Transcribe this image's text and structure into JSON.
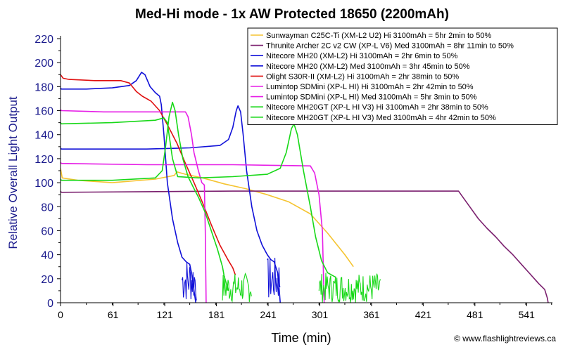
{
  "chart_data": {
    "type": "line",
    "title": "Med-Hi mode - 1x AW Protected 18650 (2200mAh)",
    "xlabel": "Time (min)",
    "ylabel": "Relative Overall Light Output",
    "xlim": [
      0,
      571
    ],
    "ylim": [
      0,
      220
    ],
    "xticks": [
      "0",
      "61",
      "121",
      "181",
      "241",
      "301",
      "361",
      "421",
      "481",
      "541"
    ],
    "yticks": [
      "0",
      "20",
      "40",
      "60",
      "80",
      "100",
      "120",
      "140",
      "160",
      "180",
      "200",
      "220"
    ],
    "grid": false,
    "legend_position": "top-right",
    "credit": "© www.flashlightreviews.ca",
    "series": [
      {
        "name": "Sunwayman C25C-Ti (XM-L2 U2) Hi 3100mAh = 5hr 2min to 50%",
        "color": "#f5c431",
        "points": [
          [
            0,
            112
          ],
          [
            2,
            104
          ],
          [
            20,
            102
          ],
          [
            60,
            100
          ],
          [
            110,
            103
          ],
          [
            132,
            106
          ],
          [
            135,
            109
          ],
          [
            145,
            107
          ],
          [
            165,
            104
          ],
          [
            190,
            99
          ],
          [
            215,
            95
          ],
          [
            240,
            90
          ],
          [
            265,
            84
          ],
          [
            290,
            74
          ],
          [
            310,
            58
          ],
          [
            330,
            40
          ],
          [
            340,
            30
          ]
        ]
      },
      {
        "name": "Thrunite Archer 2C v2 CW (XP-L V6) Med 3100mAh = 8hr 11min to 50%",
        "color": "#7a1f6e",
        "points": [
          [
            0,
            93
          ],
          [
            1,
            92
          ],
          [
            100,
            92.5
          ],
          [
            200,
            93
          ],
          [
            300,
            93
          ],
          [
            400,
            93
          ],
          [
            462,
            93
          ],
          [
            465,
            90
          ],
          [
            475,
            80
          ],
          [
            485,
            70
          ],
          [
            495,
            62
          ],
          [
            505,
            55
          ],
          [
            515,
            47
          ],
          [
            525,
            40
          ],
          [
            535,
            32
          ],
          [
            545,
            24
          ],
          [
            555,
            16
          ],
          [
            562,
            11
          ],
          [
            565,
            4
          ],
          [
            566,
            0
          ]
        ]
      },
      {
        "name": "Nitecore MH20 (XM-L2) Hi 3100mAh = 2hr 6min to 50%",
        "color": "#1010d8",
        "points": [
          [
            0,
            179
          ],
          [
            1,
            178
          ],
          [
            30,
            178
          ],
          [
            60,
            179
          ],
          [
            80,
            181
          ],
          [
            88,
            185
          ],
          [
            94,
            192
          ],
          [
            98,
            190
          ],
          [
            104,
            180
          ],
          [
            110,
            175
          ],
          [
            115,
            172
          ],
          [
            117,
            165
          ],
          [
            120,
            140
          ],
          [
            124,
            100
          ],
          [
            130,
            70
          ],
          [
            136,
            50
          ],
          [
            141,
            38
          ],
          [
            146,
            34
          ],
          [
            150,
            32
          ],
          [
            152,
            25
          ],
          [
            155,
            10
          ],
          [
            157,
            0
          ]
        ]
      },
      {
        "name": "Nitecore MH20 (XM-L2) Med 3100mAh = 3hr 45min to 50%",
        "color": "#1010d8",
        "points": [
          [
            0,
            129
          ],
          [
            1,
            128
          ],
          [
            50,
            128
          ],
          [
            100,
            128
          ],
          [
            150,
            129
          ],
          [
            185,
            131
          ],
          [
            195,
            136
          ],
          [
            200,
            146
          ],
          [
            204,
            160
          ],
          [
            206,
            164
          ],
          [
            209,
            159
          ],
          [
            212,
            140
          ],
          [
            216,
            110
          ],
          [
            222,
            80
          ],
          [
            228,
            60
          ],
          [
            234,
            48
          ],
          [
            240,
            40
          ],
          [
            244,
            36
          ],
          [
            248,
            34
          ],
          [
            252,
            25
          ],
          [
            254,
            10
          ],
          [
            255,
            0
          ]
        ]
      },
      {
        "name": "Olight S30R-II (XM-L2) Hi 3100mAh = 2hr 38min to 50%",
        "color": "#e01010",
        "points": [
          [
            0,
            190
          ],
          [
            3,
            187
          ],
          [
            10,
            186
          ],
          [
            40,
            185
          ],
          [
            70,
            185
          ],
          [
            80,
            183
          ],
          [
            88,
            176
          ],
          [
            95,
            172
          ],
          [
            105,
            168
          ],
          [
            115,
            160
          ],
          [
            125,
            147
          ],
          [
            135,
            133
          ],
          [
            145,
            116
          ],
          [
            155,
            100
          ],
          [
            165,
            83
          ],
          [
            175,
            65
          ],
          [
            185,
            48
          ],
          [
            195,
            35
          ],
          [
            200,
            29
          ],
          [
            203,
            23
          ]
        ]
      },
      {
        "name": "Lumintop SDMini (XP-L HI) Hi 3100mAh = 2hr 42min to 50%",
        "color": "#e61ee6",
        "points": [
          [
            0,
            161
          ],
          [
            1,
            160
          ],
          [
            50,
            159
          ],
          [
            100,
            159
          ],
          [
            145,
            159
          ],
          [
            148,
            155
          ],
          [
            152,
            140
          ],
          [
            155,
            125
          ],
          [
            160,
            110
          ],
          [
            164,
            100
          ],
          [
            167,
            98
          ],
          [
            168,
            60
          ],
          [
            169,
            0
          ]
        ]
      },
      {
        "name": "Lumintop SDMini (XP-L HI) Med 3100mAh = 5hr 3min to 50%",
        "color": "#e61ee6",
        "points": [
          [
            0,
            117
          ],
          [
            1,
            116
          ],
          [
            100,
            115
          ],
          [
            200,
            115
          ],
          [
            290,
            114
          ],
          [
            295,
            108
          ],
          [
            300,
            90
          ],
          [
            304,
            60
          ],
          [
            306,
            0
          ]
        ]
      },
      {
        "name": "Nitecore MH20GT (XP-L HI V3) Hi 3100mAh = 2hr 38min to 50%",
        "color": "#18d818",
        "points": [
          [
            0,
            103
          ],
          [
            1,
            102
          ],
          [
            60,
            102
          ],
          [
            110,
            104
          ],
          [
            118,
            110
          ],
          [
            122,
            130
          ],
          [
            126,
            155
          ],
          [
            130,
            167
          ],
          [
            133,
            160
          ],
          [
            137,
            140
          ],
          [
            142,
            120
          ],
          [
            148,
            105
          ],
          [
            155,
            95
          ],
          [
            160,
            88
          ],
          [
            168,
            75
          ],
          [
            175,
            60
          ],
          [
            182,
            45
          ],
          [
            188,
            30
          ],
          [
            190,
            22
          ],
          [
            195,
            10
          ]
        ]
      },
      {
        "name": "Nitecore MH20GT (XP-L HI V3) Med 3100mAh = 4hr 42min to 50%",
        "color": "#18d818",
        "points": [
          [
            0,
            150
          ],
          [
            1,
            149
          ],
          [
            60,
            150
          ],
          [
            110,
            152
          ],
          [
            120,
            154
          ],
          [
            124,
            150
          ],
          [
            130,
            120
          ],
          [
            136,
            105
          ],
          [
            160,
            104
          ],
          [
            200,
            105
          ],
          [
            240,
            107
          ],
          [
            255,
            112
          ],
          [
            262,
            125
          ],
          [
            268,
            145
          ],
          [
            271,
            149
          ],
          [
            275,
            140
          ],
          [
            282,
            110
          ],
          [
            290,
            80
          ],
          [
            296,
            55
          ],
          [
            303,
            35
          ],
          [
            310,
            25
          ],
          [
            320,
            21
          ]
        ]
      }
    ],
    "noise_regions": [
      {
        "series": 2,
        "x_start": 141,
        "x_end": 158,
        "y_max": 38
      },
      {
        "series": 3,
        "x_start": 240,
        "x_end": 256,
        "y_max": 38
      },
      {
        "series": 7,
        "x_start": 188,
        "x_end": 222,
        "y_max": 25
      },
      {
        "series": 8,
        "x_start": 300,
        "x_end": 372,
        "y_max": 25
      }
    ]
  }
}
